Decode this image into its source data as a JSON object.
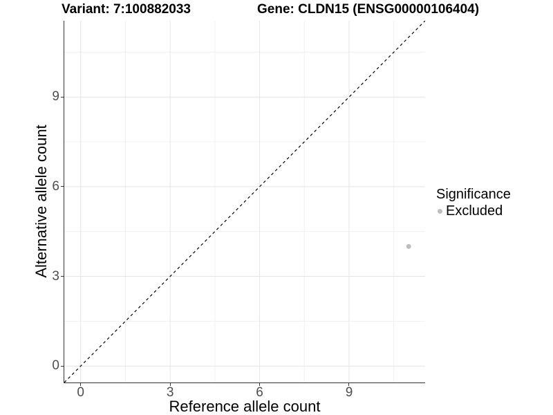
{
  "titles": {
    "variant": "Variant: 7:100882033",
    "gene": "Gene: CLDN15 (ENSG00000106404)"
  },
  "chart_data": {
    "type": "scatter",
    "title_left": "Variant: 7:100882033",
    "title_right": "Gene: CLDN15 (ENSG00000106404)",
    "xlabel": "Reference allele count",
    "ylabel": "Alternative allele count",
    "xlim": [
      -0.55,
      11.55
    ],
    "ylim": [
      -0.55,
      11.55
    ],
    "x_ticks": [
      0,
      3,
      6,
      9
    ],
    "y_ticks": [
      0,
      3,
      6,
      9
    ],
    "x_minor_ticks": [
      1.5,
      4.5,
      7.5,
      10.5
    ],
    "y_minor_ticks": [
      1.5,
      4.5,
      7.5,
      10.5
    ],
    "grid": true,
    "identity_line": {
      "style": "dashed",
      "color": "#000000",
      "from": -0.55,
      "to": 11.55
    },
    "series": [
      {
        "name": "Excluded",
        "color": "#bdbdbd",
        "point_radius": 3.5,
        "points": [
          {
            "x": 11,
            "y": 4
          }
        ]
      }
    ],
    "legend": {
      "position": "right",
      "title": "Significance",
      "items": [
        {
          "label": "Excluded",
          "color": "#bdbdbd"
        }
      ]
    }
  },
  "style_colors": {
    "grid_major": "#e4e4e4",
    "grid_minor": "#f0f0f0",
    "axis_line": "#333333",
    "tick_text": "#4d4d4d"
  }
}
